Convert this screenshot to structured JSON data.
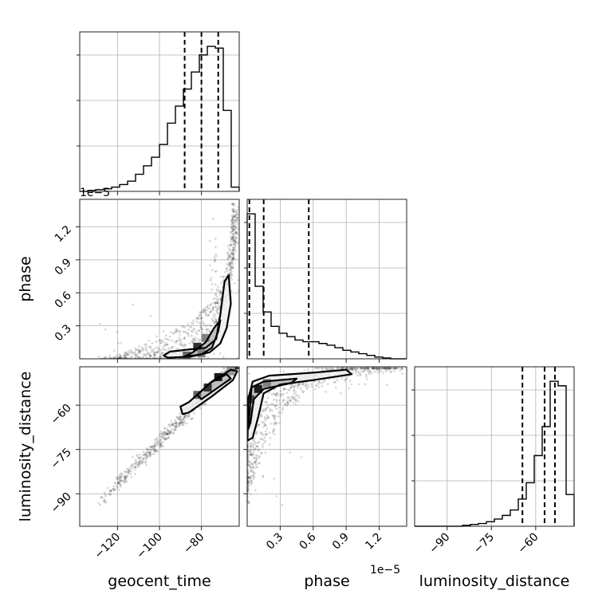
{
  "chart_data": {
    "type": "corner",
    "grid": true,
    "parameters": [
      "geocent_time",
      "phase",
      "luminosity_distance"
    ],
    "axes": {
      "geocent_time": {
        "label": "geocent_time",
        "lim": [
          -138,
          -62
        ],
        "ticks": [
          -120,
          -100,
          -80
        ],
        "tick_labels": [
          "−120",
          "−100",
          "−80"
        ]
      },
      "phase": {
        "label": "phase",
        "lim": [
          0.0,
          1.45
        ],
        "ticks": [
          0.3,
          0.6,
          0.9,
          1.2
        ],
        "tick_labels": [
          "0.3",
          "0.6",
          "0.9",
          "1.2"
        ],
        "offset_text": "1e−5"
      },
      "luminosity_distance": {
        "label": "luminosity_distance",
        "lim": [
          -101,
          -47
        ],
        "ticks": [
          -90,
          -75,
          -60
        ],
        "tick_labels": [
          "−90",
          "−75",
          "−60"
        ]
      }
    },
    "marginals": {
      "geocent_time": {
        "bin_edges": [
          -138,
          -134.2,
          -130.4,
          -126.6,
          -122.8,
          -119,
          -115.2,
          -111.4,
          -107.6,
          -103.8,
          -100,
          -96.2,
          -92.4,
          -88.6,
          -84.8,
          -81,
          -77.2,
          -73.4,
          -69.6,
          -65.8,
          -62
        ],
        "counts": [
          0,
          1,
          2,
          3,
          5,
          8,
          12,
          20,
          30,
          40,
          55,
          80,
          100,
          120,
          140,
          160,
          170,
          168,
          95,
          5
        ],
        "quantiles": [
          -88,
          -80,
          -72
        ]
      },
      "phase": {
        "bin_edges": [
          0,
          0.0725,
          0.145,
          0.2175,
          0.29,
          0.3625,
          0.435,
          0.5075,
          0.58,
          0.6525,
          0.725,
          0.7975,
          0.87,
          0.9425,
          1.015,
          1.0875,
          1.16,
          1.2325,
          1.305,
          1.3775,
          1.45
        ],
        "counts": [
          170,
          85,
          55,
          38,
          30,
          26,
          22,
          20,
          20,
          18,
          16,
          13,
          10,
          8,
          6,
          4,
          2,
          1,
          0,
          0
        ],
        "quantiles": [
          0.02,
          0.15,
          0.56
        ]
      },
      "luminosity_distance": {
        "bin_edges": [
          -101,
          -98.3,
          -95.6,
          -92.9,
          -90.2,
          -87.5,
          -84.8,
          -82.1,
          -79.4,
          -76.7,
          -74,
          -71.3,
          -68.6,
          -65.9,
          -63.2,
          -60.5,
          -57.8,
          -55.1,
          -52.4,
          -49.7,
          -47
        ],
        "counts": [
          0,
          0,
          0,
          0,
          0,
          0,
          1,
          2,
          3,
          5,
          8,
          12,
          18,
          30,
          48,
          78,
          110,
          160,
          155,
          35
        ],
        "quantiles": [
          -64.5,
          -57,
          -53.5
        ]
      }
    },
    "joint": [
      {
        "x": "geocent_time",
        "y": "phase",
        "contours": [
          [
            [
              -96,
              0.01
            ],
            [
              -85,
              0.02
            ],
            [
              -76,
              0.06
            ],
            [
              -71,
              0.14
            ],
            [
              -68,
              0.28
            ],
            [
              -66,
              0.5
            ],
            [
              -67,
              0.76
            ],
            [
              -69,
              0.7
            ],
            [
              -71,
              0.4
            ],
            [
              -73,
              0.18
            ],
            [
              -78,
              0.1
            ],
            [
              -86,
              0.085
            ],
            [
              -95,
              0.065
            ],
            [
              -98,
              0.03
            ]
          ],
          [
            [
              -88,
              0.02
            ],
            [
              -80,
              0.04
            ],
            [
              -75,
              0.1
            ],
            [
              -72,
              0.25
            ],
            [
              -71,
              0.35
            ],
            [
              -74,
              0.28
            ],
            [
              -78,
              0.15
            ],
            [
              -84,
              0.06
            ]
          ]
        ],
        "fill_bins": [
          {
            "x": -82,
            "y": 0.11,
            "d": 0.8
          },
          {
            "x": -78,
            "y": 0.19,
            "d": 0.5
          },
          {
            "x": -87,
            "y": 0.03,
            "d": 0.6
          },
          {
            "x": -80,
            "y": 0.05,
            "d": 0.5
          }
        ]
      },
      {
        "x": "geocent_time",
        "y": "luminosity_distance",
        "contours": [
          [
            [
              -90,
              -60.5
            ],
            [
              -86,
              -59
            ],
            [
              -75,
              -52
            ],
            [
              -66,
              -48
            ],
            [
              -63,
              -48.5
            ],
            [
              -65,
              -51.5
            ],
            [
              -75,
              -57
            ],
            [
              -86,
              -62.5
            ],
            [
              -89,
              -63
            ]
          ],
          [
            [
              -82,
              -56.5
            ],
            [
              -76,
              -52.5
            ],
            [
              -68,
              -49.5
            ],
            [
              -66,
              -51
            ],
            [
              -72,
              -54
            ],
            [
              -80,
              -58
            ]
          ]
        ],
        "fill_bins": [
          {
            "x": -72,
            "y": -50.5,
            "d": 0.9
          },
          {
            "x": -77,
            "y": -54,
            "d": 0.8
          },
          {
            "x": -82,
            "y": -56.5,
            "d": 0.6
          },
          {
            "x": -66,
            "y": -48.5,
            "d": 0.4
          }
        ]
      },
      {
        "x": "phase",
        "y": "luminosity_distance",
        "contours": [
          [
            [
              0.003,
              -72
            ],
            [
              0.01,
              -58
            ],
            [
              0.05,
              -52
            ],
            [
              0.2,
              -50
            ],
            [
              0.6,
              -49
            ],
            [
              0.9,
              -48
            ],
            [
              0.95,
              -49.5
            ],
            [
              0.6,
              -51.5
            ],
            [
              0.3,
              -53
            ],
            [
              0.15,
              -56
            ],
            [
              0.1,
              -64
            ],
            [
              0.05,
              -71
            ]
          ],
          [
            [
              0.01,
              -68
            ],
            [
              0.04,
              -54
            ],
            [
              0.15,
              -52
            ],
            [
              0.45,
              -51
            ],
            [
              0.4,
              -52.5
            ],
            [
              0.15,
              -54.5
            ],
            [
              0.06,
              -58
            ],
            [
              0.03,
              -66
            ]
          ]
        ],
        "fill_bins": [
          {
            "x": 0.1,
            "y": -54.5,
            "d": 0.9
          },
          {
            "x": 0.03,
            "y": -58,
            "d": 0.7
          },
          {
            "x": 0.18,
            "y": -52.5,
            "d": 0.5
          },
          {
            "x": 0.01,
            "y": -62,
            "d": 0.5
          }
        ]
      }
    ],
    "scatter_sample_size": 900
  }
}
